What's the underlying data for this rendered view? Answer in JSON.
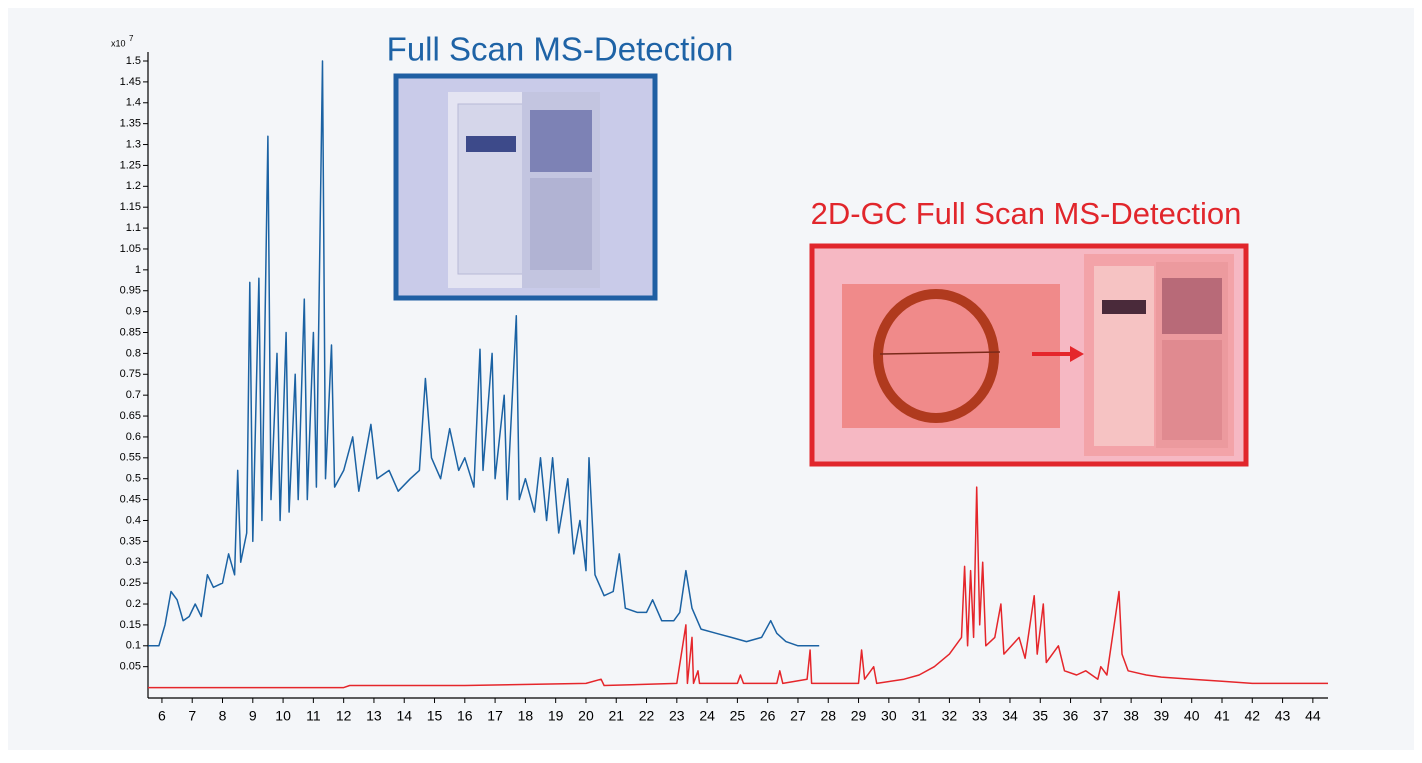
{
  "chart_data": {
    "type": "line",
    "y_multiplier": "x10",
    "y_exponent": "7",
    "xlim": [
      5.54,
      44.5
    ],
    "ylim": [
      -0.025,
      1.5
    ],
    "xticks": [
      6,
      7,
      8,
      9,
      10,
      11,
      12,
      13,
      14,
      15,
      16,
      17,
      18,
      19,
      20,
      21,
      22,
      23,
      24,
      25,
      26,
      27,
      28,
      29,
      30,
      31,
      32,
      33,
      34,
      35,
      36,
      37,
      38,
      39,
      40,
      41,
      42,
      43,
      44
    ],
    "yticks": [
      0.05,
      0.1,
      0.15,
      0.2,
      0.25,
      0.3,
      0.35,
      0.4,
      0.45,
      0.5,
      0.55,
      0.6,
      0.65,
      0.7,
      0.75,
      0.8,
      0.85,
      0.9,
      0.95,
      1,
      1.05,
      1.1,
      1.15,
      1.2,
      1.25,
      1.3,
      1.35,
      1.4,
      1.45,
      1.5
    ],
    "annotations": [
      {
        "text": "Full Scan MS-Detection",
        "color": "#1e63a6"
      },
      {
        "text": "2D-GC Full Scan MS-Detection",
        "color": "#e1262c"
      }
    ],
    "series": [
      {
        "color": "#1b62a3",
        "x": [
          5.55,
          5.9,
          6.1,
          6.3,
          6.5,
          6.7,
          6.9,
          7.1,
          7.3,
          7.5,
          7.7,
          8.0,
          8.2,
          8.4,
          8.5,
          8.6,
          8.8,
          8.9,
          9.0,
          9.2,
          9.3,
          9.5,
          9.6,
          9.8,
          9.9,
          10.1,
          10.2,
          10.4,
          10.5,
          10.7,
          10.8,
          11.0,
          11.1,
          11.3,
          11.4,
          11.6,
          11.7,
          12.0,
          12.3,
          12.5,
          12.9,
          13.1,
          13.5,
          13.8,
          14.2,
          14.5,
          14.7,
          14.9,
          15.2,
          15.5,
          15.8,
          16.0,
          16.3,
          16.5,
          16.6,
          16.9,
          17.0,
          17.3,
          17.4,
          17.7,
          17.8,
          18.0,
          18.3,
          18.5,
          18.7,
          18.9,
          19.1,
          19.4,
          19.6,
          19.8,
          20.0,
          20.1,
          20.3,
          20.6,
          20.9,
          21.1,
          21.3,
          21.7,
          22.0,
          22.2,
          22.5,
          22.9,
          23.1,
          23.3,
          23.5,
          23.8,
          24.3,
          24.8,
          25.3,
          25.8,
          26.1,
          26.3,
          26.6,
          27.0,
          27.7
        ],
        "values": [
          0.1,
          0.1,
          0.15,
          0.23,
          0.21,
          0.16,
          0.17,
          0.2,
          0.17,
          0.27,
          0.24,
          0.25,
          0.32,
          0.27,
          0.52,
          0.3,
          0.37,
          0.97,
          0.35,
          0.98,
          0.4,
          1.32,
          0.45,
          0.8,
          0.4,
          0.85,
          0.42,
          0.75,
          0.45,
          0.93,
          0.45,
          0.85,
          0.48,
          1.5,
          0.5,
          0.82,
          0.48,
          0.52,
          0.6,
          0.47,
          0.63,
          0.5,
          0.52,
          0.47,
          0.5,
          0.52,
          0.74,
          0.55,
          0.5,
          0.62,
          0.52,
          0.55,
          0.48,
          0.81,
          0.52,
          0.8,
          0.5,
          0.7,
          0.45,
          0.89,
          0.45,
          0.5,
          0.42,
          0.55,
          0.4,
          0.55,
          0.37,
          0.5,
          0.32,
          0.4,
          0.28,
          0.55,
          0.27,
          0.22,
          0.23,
          0.32,
          0.19,
          0.18,
          0.18,
          0.21,
          0.16,
          0.16,
          0.18,
          0.28,
          0.19,
          0.14,
          0.13,
          0.12,
          0.11,
          0.12,
          0.16,
          0.13,
          0.11,
          0.1,
          0.1
        ]
      },
      {
        "color": "#e5262b",
        "x": [
          5.54,
          12.0,
          12.2,
          16.0,
          20.0,
          20.5,
          20.6,
          23.0,
          23.3,
          23.35,
          23.5,
          23.55,
          23.7,
          23.75,
          25.0,
          25.1,
          25.2,
          26.3,
          26.4,
          26.5,
          27.3,
          27.4,
          27.45,
          29.0,
          29.1,
          29.2,
          29.5,
          29.6,
          30.5,
          31.0,
          31.5,
          32.0,
          32.4,
          32.5,
          32.6,
          32.7,
          32.8,
          32.9,
          33.0,
          33.1,
          33.2,
          33.5,
          33.7,
          33.8,
          34.3,
          34.5,
          34.8,
          34.9,
          35.1,
          35.2,
          35.6,
          35.8,
          36.2,
          36.5,
          36.9,
          37.0,
          37.2,
          37.5,
          37.6,
          37.7,
          37.9,
          38.5,
          39.0,
          40.0,
          41.0,
          42.0,
          43.0,
          44.5
        ],
        "values": [
          0.0,
          0.0,
          0.005,
          0.005,
          0.01,
          0.02,
          0.005,
          0.01,
          0.15,
          0.01,
          0.12,
          0.01,
          0.04,
          0.01,
          0.01,
          0.03,
          0.01,
          0.01,
          0.04,
          0.01,
          0.02,
          0.09,
          0.01,
          0.01,
          0.09,
          0.02,
          0.05,
          0.01,
          0.02,
          0.03,
          0.05,
          0.08,
          0.12,
          0.29,
          0.1,
          0.28,
          0.12,
          0.48,
          0.15,
          0.3,
          0.1,
          0.12,
          0.2,
          0.08,
          0.12,
          0.07,
          0.22,
          0.08,
          0.2,
          0.06,
          0.1,
          0.04,
          0.03,
          0.04,
          0.02,
          0.05,
          0.03,
          0.18,
          0.23,
          0.08,
          0.04,
          0.03,
          0.025,
          0.02,
          0.015,
          0.01,
          0.01,
          0.01
        ]
      }
    ]
  }
}
